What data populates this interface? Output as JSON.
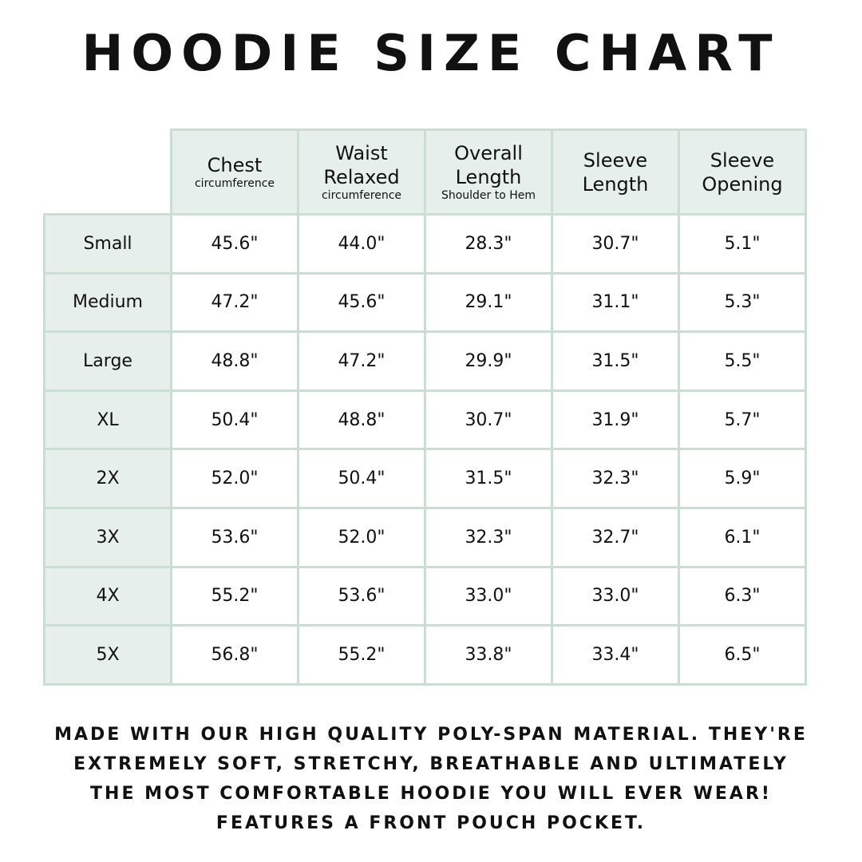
{
  "title": "HOODIE SIZE CHART",
  "colors": {
    "header_bg": "#e6efec",
    "grid_border": "#c9dfd6",
    "text": "#111111"
  },
  "columns": [
    {
      "label": "Chest",
      "sub": "circumference"
    },
    {
      "label": "Waist Relaxed",
      "sub": "circumference"
    },
    {
      "label": "Overall Length",
      "sub": "Shoulder to Hem"
    },
    {
      "label": "Sleeve Length",
      "sub": ""
    },
    {
      "label": "Sleeve Opening",
      "sub": ""
    }
  ],
  "rows": [
    {
      "size": "Small",
      "values": [
        "45.6\"",
        "44.0\"",
        "28.3\"",
        "30.7\"",
        "5.1\""
      ]
    },
    {
      "size": "Medium",
      "values": [
        "47.2\"",
        "45.6\"",
        "29.1\"",
        "31.1\"",
        "5.3\""
      ]
    },
    {
      "size": "Large",
      "values": [
        "48.8\"",
        "47.2\"",
        "29.9\"",
        "31.5\"",
        "5.5\""
      ]
    },
    {
      "size": "XL",
      "values": [
        "50.4\"",
        "48.8\"",
        "30.7\"",
        "31.9\"",
        "5.7\""
      ]
    },
    {
      "size": "2X",
      "values": [
        "52.0\"",
        "50.4\"",
        "31.5\"",
        "32.3\"",
        "5.9\""
      ]
    },
    {
      "size": "3X",
      "values": [
        "53.6\"",
        "52.0\"",
        "32.3\"",
        "32.7\"",
        "6.1\""
      ]
    },
    {
      "size": "4X",
      "values": [
        "55.2\"",
        "53.6\"",
        "33.0\"",
        "33.0\"",
        "6.3\""
      ]
    },
    {
      "size": "5X",
      "values": [
        "56.8\"",
        "55.2\"",
        "33.8\"",
        "33.4\"",
        "6.5\""
      ]
    }
  ],
  "footer": [
    "Made with our high quality poly-span material. They're",
    "extremely soft, stretchy, breathable and ultimately",
    "the most comfortable hoodie you will ever wear!",
    "Features a front pouch pocket."
  ]
}
